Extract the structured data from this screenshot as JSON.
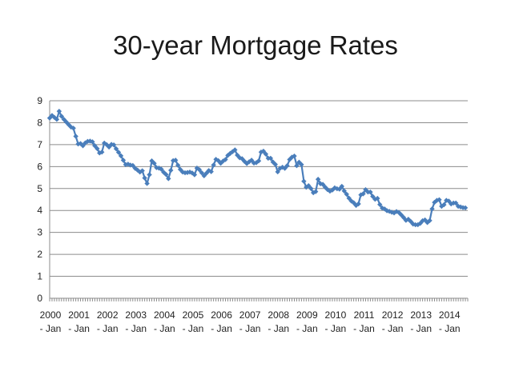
{
  "slide": {
    "title": "30-year Mortgage Rates"
  },
  "chart_data": {
    "type": "line",
    "title": "30-year Mortgage Rates",
    "xlabel": "",
    "ylabel": "",
    "ylim": [
      0,
      9
    ],
    "yticks": [
      "0",
      "1",
      "2",
      "3",
      "4",
      "5",
      "6",
      "7",
      "8",
      "9"
    ],
    "xtick_labels": [
      [
        "2000",
        "- Jan"
      ],
      [
        "2001",
        "- Jan"
      ],
      [
        "2002",
        "- Jan"
      ],
      [
        "2003",
        "- Jan"
      ],
      [
        "2004",
        "- Jan"
      ],
      [
        "2005",
        "- Jan"
      ],
      [
        "2006",
        "- Jan"
      ],
      [
        "2007",
        "- Jan"
      ],
      [
        "2008",
        "- Jan"
      ],
      [
        "2009",
        "- Jan"
      ],
      [
        "2010",
        "- Jan"
      ],
      [
        "2011",
        "- Jan"
      ],
      [
        "2012",
        "- Jan"
      ],
      [
        "2013",
        "- Jan"
      ],
      [
        "2014",
        "- Jan"
      ]
    ],
    "grid": "horizontal",
    "legend": "none",
    "line_color": "#4a7ebb",
    "marker": "diamond",
    "series": [
      {
        "x": [
          2000.0,
          2000.083,
          2000.167,
          2000.25,
          2000.333,
          2000.417,
          2000.5,
          2000.583,
          2000.667,
          2000.75,
          2000.833,
          2000.917,
          2001.0,
          2001.083,
          2001.167,
          2001.25,
          2001.333,
          2001.417,
          2001.5,
          2001.583,
          2001.667,
          2001.75,
          2001.833,
          2001.917,
          2002.0,
          2002.083,
          2002.167,
          2002.25,
          2002.333,
          2002.417,
          2002.5,
          2002.583,
          2002.667,
          2002.75,
          2002.833,
          2002.917,
          2003.0,
          2003.083,
          2003.167,
          2003.25,
          2003.333,
          2003.417,
          2003.5,
          2003.583,
          2003.667,
          2003.75,
          2003.833,
          2003.917,
          2004.0,
          2004.083,
          2004.167,
          2004.25,
          2004.333,
          2004.417,
          2004.5,
          2004.583,
          2004.667,
          2004.75,
          2004.833,
          2004.917,
          2005.0,
          2005.083,
          2005.167,
          2005.25,
          2005.333,
          2005.417,
          2005.5,
          2005.583,
          2005.667,
          2005.75,
          2005.833,
          2005.917,
          2006.0,
          2006.083,
          2006.167,
          2006.25,
          2006.333,
          2006.417,
          2006.5,
          2006.583,
          2006.667,
          2006.75,
          2006.833,
          2006.917,
          2007.0,
          2007.083,
          2007.167,
          2007.25,
          2007.333,
          2007.417,
          2007.5,
          2007.583,
          2007.667,
          2007.75,
          2007.833,
          2007.917,
          2008.0,
          2008.083,
          2008.167,
          2008.25,
          2008.333,
          2008.417,
          2008.5,
          2008.583,
          2008.667,
          2008.75,
          2008.833,
          2008.917,
          2009.0,
          2009.083,
          2009.167,
          2009.25,
          2009.333,
          2009.417,
          2009.5,
          2009.583,
          2009.667,
          2009.75,
          2009.833,
          2009.917,
          2010.0,
          2010.083,
          2010.167,
          2010.25,
          2010.333,
          2010.417,
          2010.5,
          2010.583,
          2010.667,
          2010.75,
          2010.833,
          2010.917,
          2011.0,
          2011.083,
          2011.167,
          2011.25,
          2011.333,
          2011.417,
          2011.5,
          2011.583,
          2011.667,
          2011.75,
          2011.833,
          2011.917,
          2012.0,
          2012.083,
          2012.167,
          2012.25,
          2012.333,
          2012.417,
          2012.5,
          2012.583,
          2012.667,
          2012.75,
          2012.833,
          2012.917,
          2013.0,
          2013.083,
          2013.167,
          2013.25,
          2013.333,
          2013.417,
          2013.5,
          2013.583,
          2013.667,
          2013.75,
          2013.833,
          2013.917,
          2014.0,
          2014.083,
          2014.167,
          2014.25,
          2014.333,
          2014.417,
          2014.5,
          2014.583
        ],
        "values": [
          8.21,
          8.33,
          8.24,
          8.15,
          8.52,
          8.29,
          8.15,
          8.03,
          7.91,
          7.8,
          7.75,
          7.38,
          7.03,
          7.05,
          6.95,
          7.08,
          7.15,
          7.16,
          7.13,
          6.95,
          6.82,
          6.62,
          6.66,
          7.07,
          7.0,
          6.89,
          7.01,
          6.99,
          6.81,
          6.65,
          6.49,
          6.29,
          6.09,
          6.11,
          6.07,
          6.05,
          5.92,
          5.84,
          5.75,
          5.81,
          5.48,
          5.23,
          5.63,
          6.26,
          6.15,
          5.95,
          5.93,
          5.88,
          5.74,
          5.64,
          5.45,
          5.83,
          6.27,
          6.29,
          6.06,
          5.87,
          5.75,
          5.72,
          5.73,
          5.75,
          5.71,
          5.63,
          5.93,
          5.86,
          5.72,
          5.58,
          5.7,
          5.82,
          5.77,
          6.07,
          6.33,
          6.27,
          6.15,
          6.25,
          6.32,
          6.51,
          6.6,
          6.68,
          6.76,
          6.52,
          6.4,
          6.36,
          6.24,
          6.14,
          6.22,
          6.29,
          6.16,
          6.18,
          6.26,
          6.66,
          6.7,
          6.57,
          6.38,
          6.38,
          6.21,
          6.1,
          5.76,
          5.92,
          5.97,
          5.92,
          6.04,
          6.32,
          6.43,
          6.48,
          6.04,
          6.2,
          6.09,
          5.33,
          5.06,
          5.13,
          5.0,
          4.81,
          4.86,
          5.42,
          5.22,
          5.19,
          5.06,
          4.95,
          4.88,
          4.93,
          5.03,
          4.99,
          4.97,
          5.1,
          4.89,
          4.74,
          4.56,
          4.43,
          4.35,
          4.23,
          4.3,
          4.71,
          4.76,
          4.95,
          4.84,
          4.84,
          4.64,
          4.51,
          4.55,
          4.27,
          4.11,
          4.07,
          3.99,
          3.96,
          3.92,
          3.89,
          3.95,
          3.91,
          3.8,
          3.68,
          3.55,
          3.6,
          3.5,
          3.38,
          3.35,
          3.35,
          3.41,
          3.53,
          3.57,
          3.45,
          3.54,
          4.07,
          4.37,
          4.46,
          4.49,
          4.19,
          4.26,
          4.46,
          4.43,
          4.3,
          4.34,
          4.34,
          4.19,
          4.16,
          4.13,
          4.12
        ]
      }
    ]
  }
}
